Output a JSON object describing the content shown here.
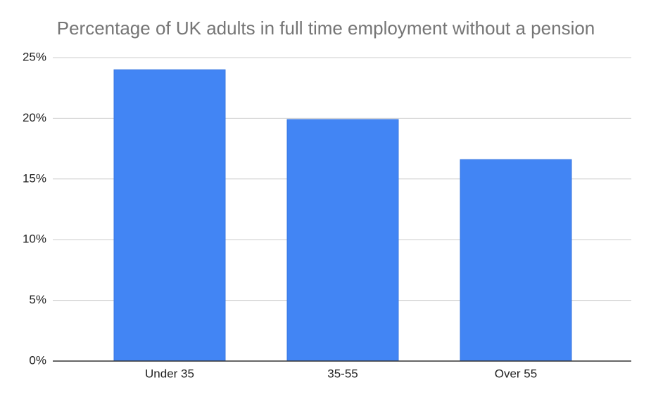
{
  "chart_data": {
    "type": "bar",
    "title": "Percentage of UK adults in full time employment without a pension",
    "categories": [
      "Under 35",
      "35-55",
      "Over 55"
    ],
    "values": [
      24,
      19.9,
      16.6
    ],
    "color": "#4285f4",
    "ylim": [
      0,
      25
    ],
    "yticks": [
      {
        "value": 0,
        "label": "0%"
      },
      {
        "value": 5,
        "label": "5%"
      },
      {
        "value": 10,
        "label": "10%"
      },
      {
        "value": 15,
        "label": "15%"
      },
      {
        "value": 20,
        "label": "20%"
      },
      {
        "value": 25,
        "label": "25%"
      }
    ],
    "grid": true
  }
}
